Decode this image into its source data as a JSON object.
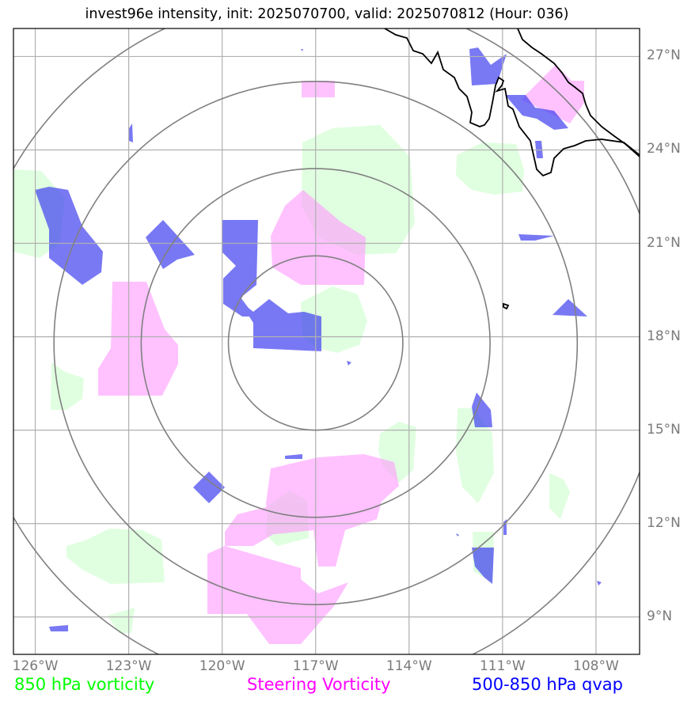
{
  "title": "invest96e intensity, init: 2025070700, valid: 2025070812 (Hour: 036)",
  "map": {
    "center": {
      "lon": -117,
      "lat": 17.8
    },
    "lon_range": [
      -126.7,
      -106.6
    ],
    "lat_range": [
      7.8,
      27.9
    ],
    "range_ring_radii_deg": [
      2.8,
      5.6,
      8.4,
      11.2
    ],
    "lon_ticks": [
      {
        "value": -126,
        "label": "126°W"
      },
      {
        "value": -123,
        "label": "123°W"
      },
      {
        "value": -120,
        "label": "120°W"
      },
      {
        "value": -117,
        "label": "117°W"
      },
      {
        "value": -114,
        "label": "114°W"
      },
      {
        "value": -111,
        "label": "111°W"
      },
      {
        "value": -108,
        "label": "108°W"
      }
    ],
    "lat_ticks": [
      {
        "value": 27,
        "label": "27°N"
      },
      {
        "value": 24,
        "label": "24°N"
      },
      {
        "value": 21,
        "label": "21°N"
      },
      {
        "value": 18,
        "label": "18°N"
      },
      {
        "value": 15,
        "label": "15°N"
      },
      {
        "value": 12,
        "label": "12°N"
      },
      {
        "value": 9,
        "label": "9°N"
      }
    ]
  },
  "legend": {
    "vorticity": {
      "label": "850 hPa vorticity",
      "color": "#00ff00"
    },
    "steering": {
      "label": "Steering Vorticity",
      "color": "#ff00ff"
    },
    "qvap": {
      "label": "500-850 hPa qvap",
      "color": "#0000ff"
    }
  },
  "colors": {
    "vorticity_fill": "#ccffcc",
    "steering_fill": "#ff99ff",
    "qvap_fill": "#4040f0",
    "grid": "#b0b0b0",
    "rings": "#808080",
    "coast": "#000000",
    "tick_text": "#7a7a7a"
  }
}
